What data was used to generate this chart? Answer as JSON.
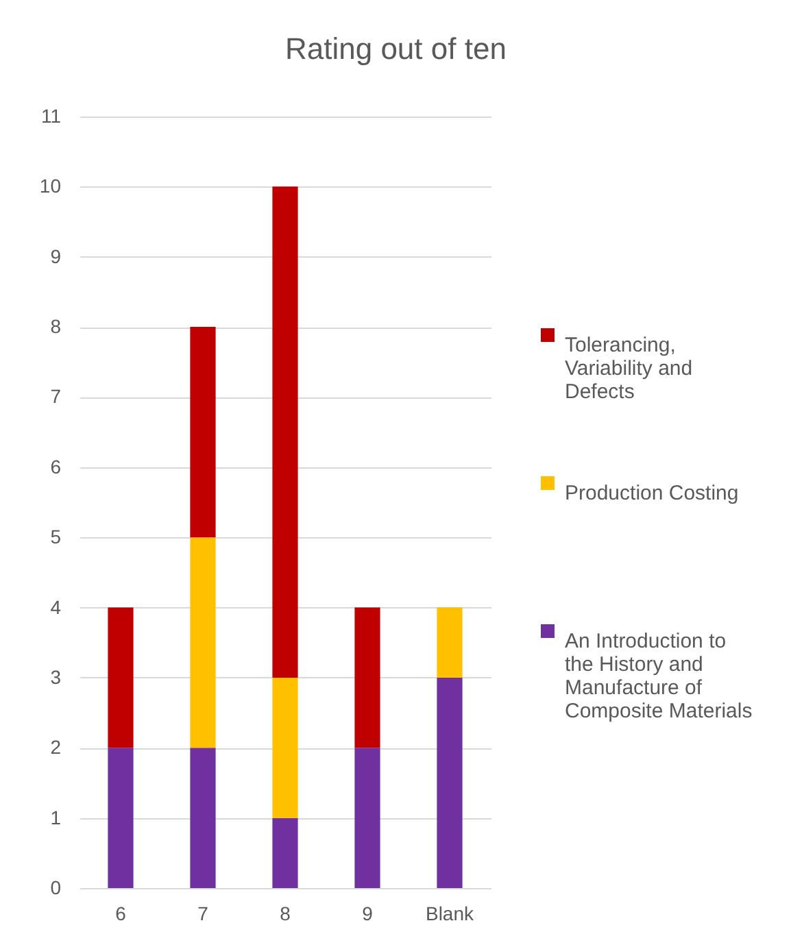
{
  "chart_data": {
    "type": "bar",
    "title": "Rating out of ten",
    "categories": [
      "6",
      "7",
      "8",
      "9",
      "Blank"
    ],
    "stacked": true,
    "series": [
      {
        "name": "An Introduction to the History and Manufacture of Composite Materials",
        "color": "#7030a0",
        "values": [
          2,
          2,
          1,
          2,
          3
        ]
      },
      {
        "name": "Production Costing",
        "color": "#ffc000",
        "values": [
          0,
          3,
          2,
          0,
          1
        ]
      },
      {
        "name": "Tolerancing, Variability and Defects",
        "color": "#c00000",
        "values": [
          2,
          3,
          7,
          2,
          0
        ]
      }
    ],
    "ylim": [
      0,
      11
    ],
    "yticks": [
      0,
      1,
      2,
      3,
      4,
      5,
      6,
      7,
      8,
      9,
      10,
      11
    ],
    "grid": "y",
    "legend": "right"
  }
}
